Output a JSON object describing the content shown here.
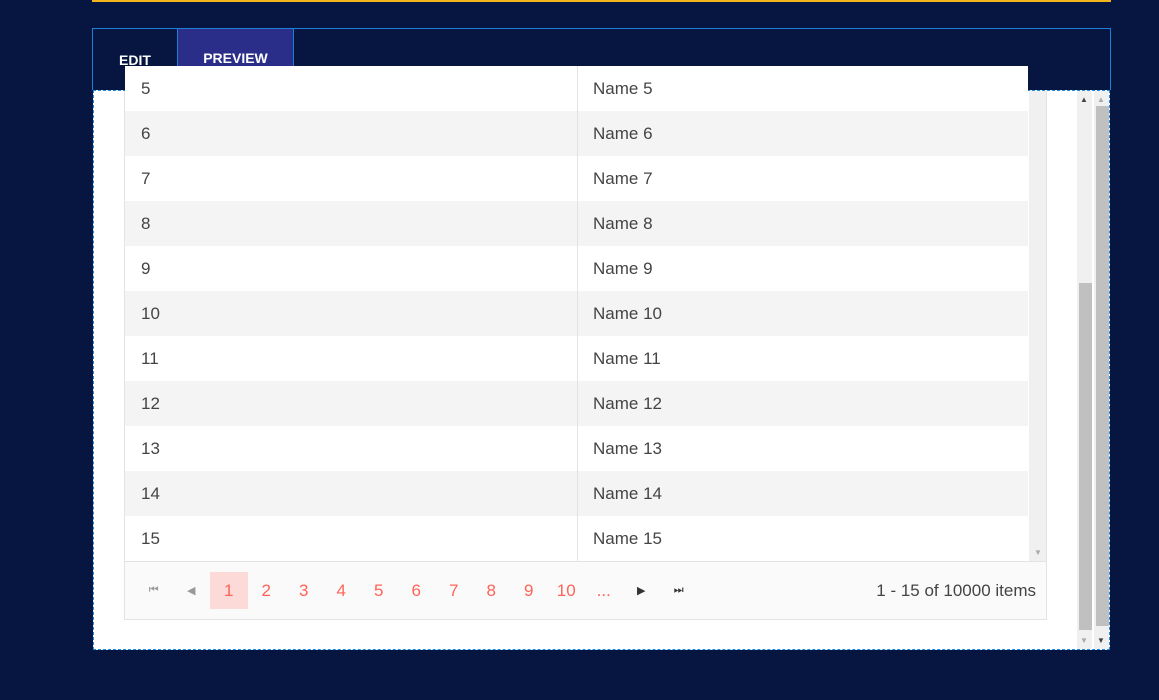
{
  "tabs": [
    {
      "label": "EDIT",
      "active": false
    },
    {
      "label": "PREVIEW",
      "active": true
    }
  ],
  "grid": {
    "partial_row": {
      "id": "5",
      "name": "Name 5"
    },
    "rows": [
      {
        "id": "6",
        "name": "Name 6"
      },
      {
        "id": "7",
        "name": "Name 7"
      },
      {
        "id": "8",
        "name": "Name 8"
      },
      {
        "id": "9",
        "name": "Name 9"
      },
      {
        "id": "10",
        "name": "Name 10"
      },
      {
        "id": "11",
        "name": "Name 11"
      },
      {
        "id": "12",
        "name": "Name 12"
      },
      {
        "id": "13",
        "name": "Name 13"
      },
      {
        "id": "14",
        "name": "Name 14"
      },
      {
        "id": "15",
        "name": "Name 15"
      }
    ]
  },
  "pager": {
    "pages": [
      "1",
      "2",
      "3",
      "4",
      "5",
      "6",
      "7",
      "8",
      "9",
      "10",
      "..."
    ],
    "current": "1",
    "info": "1 - 15 of 10000 items"
  },
  "colors": {
    "background": "#061640",
    "accent": "#ff6358",
    "tab_active": "#2a2e88",
    "border": "#1e7fd8",
    "highlight_line": "#f2b51c"
  }
}
